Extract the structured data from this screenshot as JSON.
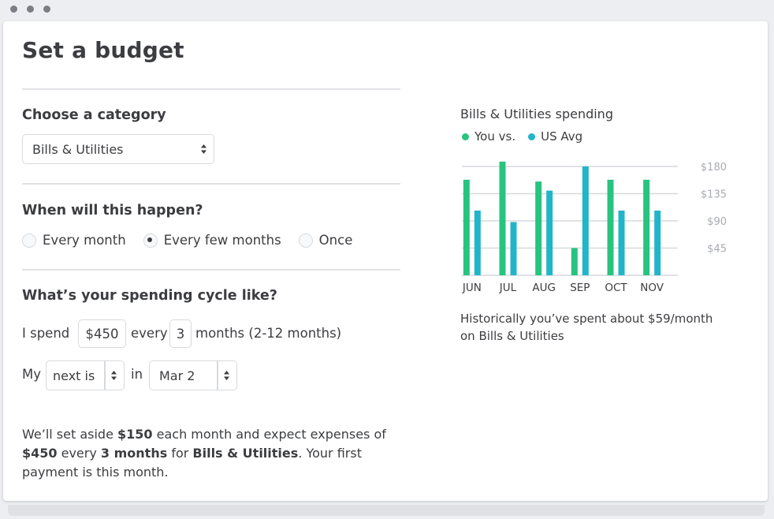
{
  "page": {
    "title": "Set a budget"
  },
  "category": {
    "heading": "Choose a category",
    "selected": "Bills & Utilities"
  },
  "frequency": {
    "heading": "When will this happen?",
    "options": [
      "Every month",
      "Every few months",
      "Once"
    ],
    "selected_index": 1
  },
  "cycle": {
    "heading": "What’s your spending cycle like?",
    "spend_prefix": "I spend",
    "amount": "$450",
    "every_label": "every",
    "months_value": "3",
    "months_suffix": "months (2-12 months)",
    "my_label": "My",
    "next_select": "next is",
    "in_label": "in",
    "date_select": "Mar 2"
  },
  "summary": {
    "t1": "We’ll set aside ",
    "b1": "$150",
    "t2": " each month and expect expenses of ",
    "b2": "$450",
    "t3": " every ",
    "b3": "3 months",
    "t4": " for ",
    "b4": "Bills & Utilities",
    "t5": ". Your first payment is this month."
  },
  "colors": {
    "you": "#27c47f",
    "us_avg": "#21b5ca"
  },
  "chart_data": {
    "type": "bar",
    "title": "Bills & Utilities spending",
    "categories": [
      "JUN",
      "JUL",
      "AUG",
      "SEP",
      "OCT",
      "NOV"
    ],
    "series": [
      {
        "name": "You vs.",
        "values": [
          158,
          188,
          155,
          45,
          158,
          158
        ]
      },
      {
        "name": "US Avg",
        "values": [
          107,
          88,
          140,
          180,
          107,
          107
        ]
      }
    ],
    "y_ticks": [
      45,
      90,
      135,
      180
    ],
    "y_tick_labels": [
      "$45",
      "$90",
      "$135",
      "$180"
    ],
    "ylim": [
      0,
      180
    ],
    "legend_position": "top-left",
    "grid": true,
    "caption": "Historically you’ve spent about $59/month on Bills & Utilities"
  }
}
